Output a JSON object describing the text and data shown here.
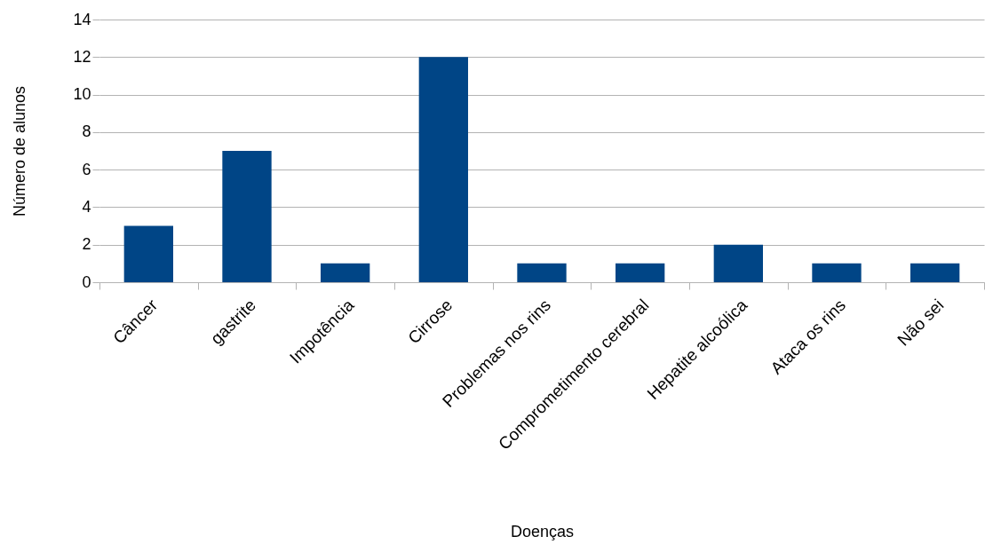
{
  "chart_data": {
    "type": "bar",
    "xlabel": "Doenças",
    "ylabel": "Número de alunos",
    "categories": [
      "Câncer",
      "gastrite",
      "Impotência",
      "Cirrose",
      "Problemas nos rins",
      "Comprometimento cerebral",
      "Hepatite alcoólica",
      "Ataca os rins",
      "Não sei"
    ],
    "values": [
      3,
      7,
      1,
      12,
      1,
      1,
      2,
      1,
      1
    ],
    "color": "#004586",
    "ylim": [
      0,
      14
    ],
    "yticks": [
      0,
      2,
      4,
      6,
      8,
      10,
      12,
      14
    ],
    "grid": "y"
  }
}
